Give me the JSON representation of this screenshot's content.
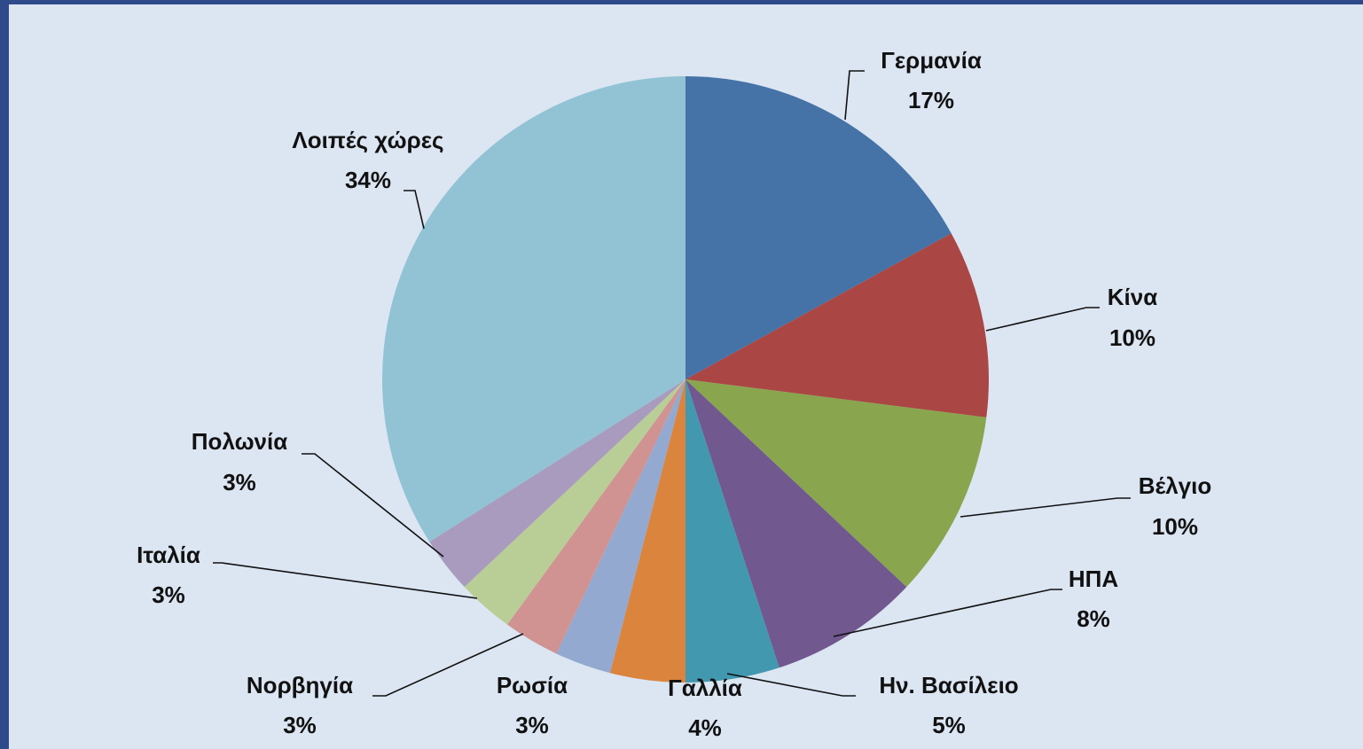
{
  "chart_data": {
    "type": "pie",
    "categories": [
      "Γερμανία",
      "Κίνα",
      "Βέλγιο",
      "ΗΠΑ",
      "Ην. Βασίλειο",
      "Γαλλία",
      "Ρωσία",
      "Νορβηγία",
      "Ιταλία",
      "Πολωνία",
      "Λοιπές χώρες"
    ],
    "values": [
      17,
      10,
      10,
      8,
      5,
      4,
      3,
      3,
      3,
      3,
      34
    ],
    "value_labels": [
      "17%",
      "10%",
      "10%",
      "8%",
      "5%",
      "4%",
      "3%",
      "3%",
      "3%",
      "3%",
      "34%"
    ],
    "colors": [
      "#4572a7",
      "#aa4643",
      "#89a54e",
      "#71588f",
      "#4198af",
      "#db843d",
      "#93a9cf",
      "#d19392",
      "#b9cd96",
      "#a99bbd",
      "#92c3d4"
    ]
  }
}
